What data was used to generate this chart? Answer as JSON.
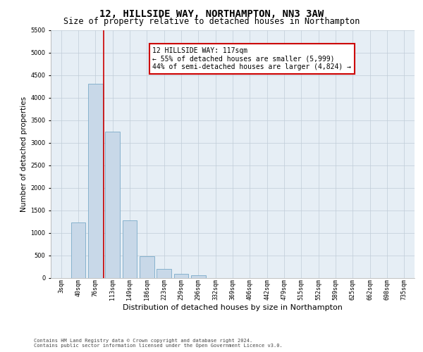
{
  "title1": "12, HILLSIDE WAY, NORTHAMPTON, NN3 3AW",
  "title2": "Size of property relative to detached houses in Northampton",
  "xlabel": "Distribution of detached houses by size in Northampton",
  "ylabel": "Number of detached properties",
  "categories": [
    "3sqm",
    "40sqm",
    "76sqm",
    "113sqm",
    "149sqm",
    "186sqm",
    "223sqm",
    "259sqm",
    "296sqm",
    "332sqm",
    "369sqm",
    "406sqm",
    "442sqm",
    "479sqm",
    "515sqm",
    "552sqm",
    "589sqm",
    "625sqm",
    "662sqm",
    "698sqm",
    "735sqm"
  ],
  "values": [
    0,
    1230,
    4300,
    3250,
    1280,
    480,
    200,
    90,
    60,
    0,
    0,
    0,
    0,
    0,
    0,
    0,
    0,
    0,
    0,
    0,
    0
  ],
  "bar_color": "#c8d8e8",
  "bar_edge_color": "#7aaac8",
  "annotation_text": "12 HILLSIDE WAY: 117sqm\n← 55% of detached houses are smaller (5,999)\n44% of semi-detached houses are larger (4,824) →",
  "annotation_box_color": "#ffffff",
  "annotation_box_edge_color": "#cc0000",
  "vline_color": "#cc0000",
  "vline_x": 2.5,
  "ylim": [
    0,
    5500
  ],
  "yticks": [
    0,
    500,
    1000,
    1500,
    2000,
    2500,
    3000,
    3500,
    4000,
    4500,
    5000,
    5500
  ],
  "bg_color": "#ffffff",
  "plot_bg_color": "#e6eef5",
  "grid_color": "#c0ccd8",
  "footer": "Contains HM Land Registry data © Crown copyright and database right 2024.\nContains public sector information licensed under the Open Government Licence v3.0.",
  "title1_fontsize": 10,
  "title2_fontsize": 8.5,
  "xlabel_fontsize": 8,
  "ylabel_fontsize": 7.5,
  "ann_fontsize": 7,
  "tick_fontsize": 6,
  "footer_fontsize": 5
}
